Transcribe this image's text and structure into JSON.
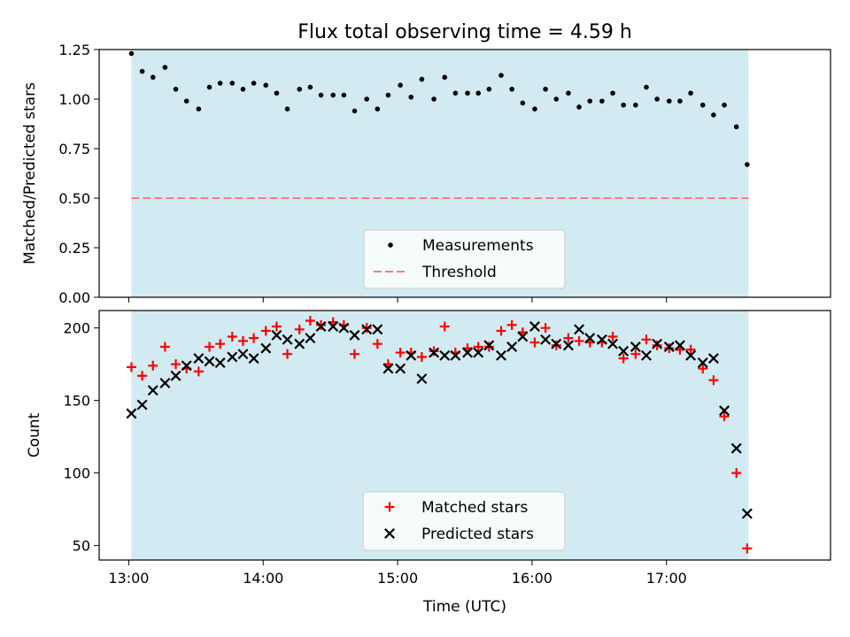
{
  "chart_data": {
    "title": "Flux total observing time = 4.59 h",
    "xlabel": "Time (UTC)",
    "x_unit": "hours UTC",
    "xlim": [
      12.78,
      18.22
    ],
    "xticks": [
      13,
      14,
      15,
      16,
      17
    ],
    "xtick_labels": [
      "13:00",
      "14:00",
      "15:00",
      "16:00",
      "17:00"
    ],
    "shaded_span": {
      "x": [
        13.02,
        17.61
      ],
      "color": "#add8e6"
    },
    "panels": [
      {
        "type": "scatter",
        "ylabel": "Matched/Predicted stars",
        "ylim": [
          0,
          1.25
        ],
        "yticks": [
          0,
          0.25,
          0.5,
          0.75,
          1.0,
          1.25
        ],
        "ytick_labels": [
          "0.00",
          "0.25",
          "0.50",
          "0.75",
          "1.00",
          "1.25"
        ],
        "legend": {
          "placement": "lower-center",
          "entries": [
            "Measurements",
            "Threshold"
          ]
        },
        "series": [
          {
            "name": "Measurements",
            "marker": "dot",
            "color": "#000000",
            "points": [
              [
                13.02,
                1.23
              ],
              [
                13.1,
                1.14
              ],
              [
                13.18,
                1.11
              ],
              [
                13.27,
                1.16
              ],
              [
                13.35,
                1.05
              ],
              [
                13.43,
                0.99
              ],
              [
                13.52,
                0.95
              ],
              [
                13.6,
                1.06
              ],
              [
                13.68,
                1.08
              ],
              [
                13.77,
                1.08
              ],
              [
                13.85,
                1.05
              ],
              [
                13.93,
                1.08
              ],
              [
                14.02,
                1.07
              ],
              [
                14.1,
                1.03
              ],
              [
                14.18,
                0.95
              ],
              [
                14.27,
                1.05
              ],
              [
                14.35,
                1.06
              ],
              [
                14.43,
                1.02
              ],
              [
                14.52,
                1.02
              ],
              [
                14.6,
                1.02
              ],
              [
                14.68,
                0.94
              ],
              [
                14.77,
                1.0
              ],
              [
                14.85,
                0.95
              ],
              [
                14.93,
                1.02
              ],
              [
                15.02,
                1.07
              ],
              [
                15.1,
                1.01
              ],
              [
                15.18,
                1.1
              ],
              [
                15.27,
                1.0
              ],
              [
                15.35,
                1.11
              ],
              [
                15.43,
                1.03
              ],
              [
                15.52,
                1.03
              ],
              [
                15.6,
                1.03
              ],
              [
                15.68,
                1.05
              ],
              [
                15.77,
                1.12
              ],
              [
                15.85,
                1.05
              ],
              [
                15.93,
                0.98
              ],
              [
                16.02,
                0.95
              ],
              [
                16.1,
                1.05
              ],
              [
                16.18,
                1.0
              ],
              [
                16.27,
                1.03
              ],
              [
                16.35,
                0.96
              ],
              [
                16.43,
                0.99
              ],
              [
                16.52,
                0.99
              ],
              [
                16.6,
                1.03
              ],
              [
                16.68,
                0.97
              ],
              [
                16.77,
                0.97
              ],
              [
                16.85,
                1.06
              ],
              [
                16.93,
                1.0
              ],
              [
                17.02,
                0.99
              ],
              [
                17.1,
                0.99
              ],
              [
                17.18,
                1.03
              ],
              [
                17.27,
                0.97
              ],
              [
                17.35,
                0.92
              ],
              [
                17.43,
                0.97
              ],
              [
                17.52,
                0.86
              ],
              [
                17.6,
                0.67
              ]
            ]
          },
          {
            "name": "Threshold",
            "kind": "hline",
            "y": 0.5,
            "color": "#f08080",
            "style": "dashed",
            "x": [
              13.02,
              17.61
            ]
          }
        ]
      },
      {
        "type": "scatter",
        "ylabel": "Count",
        "ylim": [
          40,
          212
        ],
        "yticks": [
          50,
          100,
          150,
          200
        ],
        "ytick_labels": [
          "50",
          "100",
          "150",
          "200"
        ],
        "legend": {
          "placement": "lower-center",
          "entries": [
            "Matched stars",
            "Predicted stars"
          ]
        },
        "x": [
          13.02,
          13.1,
          13.18,
          13.27,
          13.35,
          13.43,
          13.52,
          13.6,
          13.68,
          13.77,
          13.85,
          13.93,
          14.02,
          14.1,
          14.18,
          14.27,
          14.35,
          14.43,
          14.52,
          14.6,
          14.68,
          14.77,
          14.85,
          14.93,
          15.02,
          15.1,
          15.18,
          15.27,
          15.35,
          15.43,
          15.52,
          15.6,
          15.68,
          15.77,
          15.85,
          15.93,
          16.02,
          16.1,
          16.18,
          16.27,
          16.35,
          16.43,
          16.52,
          16.6,
          16.68,
          16.77,
          16.85,
          16.93,
          17.02,
          17.1,
          17.18,
          17.27,
          17.35,
          17.43,
          17.52,
          17.6
        ],
        "series": [
          {
            "name": "Matched stars",
            "marker": "plus",
            "color": "#ff0000",
            "values": [
              173,
              167,
              174,
              187,
              175,
              172,
              170,
              187,
              189,
              194,
              191,
              193,
              198,
              201,
              182,
              199,
              205,
              202,
              204,
              202,
              182,
              200,
              189,
              175,
              183,
              183,
              180,
              184,
              201,
              183,
              186,
              187,
              187,
              198,
              202,
              197,
              190,
              200,
              188,
              193,
              191,
              190,
              190,
              194,
              179,
              182,
              192,
              188,
              186,
              185,
              185,
              172,
              164,
              139,
              100,
              48
            ]
          },
          {
            "name": "Predicted stars",
            "marker": "x",
            "color": "#000000",
            "values": [
              141,
              147,
              157,
              162,
              167,
              174,
              179,
              177,
              176,
              180,
              182,
              179,
              186,
              195,
              192,
              189,
              193,
              201,
              201,
              200,
              195,
              199,
              199,
              172,
              172,
              181,
              165,
              183,
              181,
              181,
              183,
              183,
              188,
              181,
              187,
              194,
              201,
              192,
              189,
              188,
              199,
              193,
              192,
              189,
              184,
              187,
              181,
              189,
              187,
              188,
              181,
              176,
              179,
              143,
              117,
              72
            ]
          }
        ]
      }
    ]
  }
}
